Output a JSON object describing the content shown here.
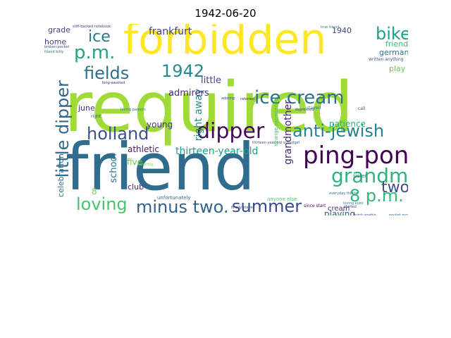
{
  "title": "1942-06-20",
  "cloud": {
    "words": [
      {
        "text": "required",
        "color": "#a0da39"
      },
      {
        "text": "friend",
        "color": "#2f6c8e"
      },
      {
        "text": "forbidden",
        "color": "#fde725"
      },
      {
        "text": "ping-pong",
        "color": "#440154"
      },
      {
        "text": "grandma",
        "color": "#2fb47c"
      },
      {
        "text": "dipper",
        "color": "#46085c"
      },
      {
        "text": "anti-jewish",
        "color": "#26828e"
      },
      {
        "text": "ice cream",
        "color": "#2e6e8e"
      },
      {
        "text": "little dipper",
        "color": "#31668e"
      },
      {
        "text": "holland",
        "color": "#3b528b"
      },
      {
        "text": "minus two.",
        "color": "#33638d"
      },
      {
        "text": "summer",
        "color": "#3e4989"
      },
      {
        "text": "p.m.",
        "color": "#20a486"
      },
      {
        "text": "loving",
        "color": "#4ac16d"
      },
      {
        "text": "8 p.m.",
        "color": "#35b779"
      },
      {
        "text": "1942",
        "color": "#228c8d"
      },
      {
        "text": "fields",
        "color": "#2c728e"
      },
      {
        "text": "bike",
        "color": "#1fa088"
      },
      {
        "text": "two.",
        "color": "#3e4a89"
      },
      {
        "text": "minus",
        "color": "#297a8e"
      },
      {
        "text": "ice",
        "color": "#2a788e"
      },
      {
        "text": "grandmother",
        "color": "#482576"
      },
      {
        "text": "frankfurt",
        "color": "#424086"
      },
      {
        "text": "thirteen-year-old",
        "color": "#1f9e89"
      },
      {
        "text": "right away",
        "color": "#238a8d"
      },
      {
        "text": "admirers",
        "color": "#472c7a"
      },
      {
        "text": "little",
        "color": "#3f4788"
      },
      {
        "text": "school",
        "color": "#2a778e"
      },
      {
        "text": "young",
        "color": "#453781"
      },
      {
        "text": "athletic",
        "color": "#48186a"
      },
      {
        "text": "celebration",
        "color": "#2c738e"
      },
      {
        "text": "patience",
        "color": "#2db27d"
      },
      {
        "text": "playing",
        "color": "#38588c"
      },
      {
        "text": "friends",
        "color": "#3dbc74"
      },
      {
        "text": "germany",
        "color": "#2a788e"
      },
      {
        "text": "grade",
        "color": "#414487"
      },
      {
        "text": "home",
        "color": "#433e85"
      },
      {
        "text": "june",
        "color": "#472d7b"
      },
      {
        "text": "1940",
        "color": "#404688"
      },
      {
        "text": "play",
        "color": "#5ec962"
      },
      {
        "text": "five",
        "color": "#6ccd5a"
      },
      {
        "text": "club",
        "color": "#482475"
      },
      {
        "text": "cream",
        "color": "#453882"
      },
      {
        "text": "8",
        "color": "#7ad151"
      },
      {
        "text": "written anything",
        "color": "#3b528b"
      },
      {
        "text": "stiff-backed notebook",
        "color": "#404588"
      },
      {
        "text": "unfortunately",
        "color": "#31688e"
      },
      {
        "text": "sister",
        "color": "#2c728e"
      },
      {
        "text": "started",
        "color": "#414487"
      },
      {
        "text": "lucky",
        "color": "#84d44b"
      },
      {
        "text": "call",
        "color": "#424086"
      },
      {
        "text": "true friend",
        "color": "#277f8e"
      },
      {
        "text": "long-awaited",
        "color": "#46327e"
      },
      {
        "text": "loving parents",
        "color": "#2a788e"
      },
      {
        "text": "right",
        "color": "#34618d"
      },
      {
        "text": "broken pocket",
        "color": "#3b528b"
      },
      {
        "text": "friend kitty",
        "color": "#2e6f8e"
      },
      {
        "text": "depressed",
        "color": "#443a83"
      },
      {
        "text": "referred",
        "color": "#482878"
      },
      {
        "text": "adoring",
        "color": "#3e4c8a"
      },
      {
        "text": "thirteen-year-old schoolgirl",
        "color": "#39568c"
      },
      {
        "text": "everyday things",
        "color": "#2c728e"
      },
      {
        "text": "anyone else",
        "color": "#5ac864"
      },
      {
        "text": "finally stayed",
        "color": "#3c4f8a"
      },
      {
        "text": "pocket money",
        "color": "#2d708e"
      },
      {
        "text": "dutch apabia",
        "color": "#3f4889"
      },
      {
        "text": "stayed",
        "color": "#2a778e"
      },
      {
        "text": "strange experience",
        "color": "#48c16e"
      },
      {
        "text": "since start",
        "color": "#440154"
      },
      {
        "text": "loving eyes",
        "color": "#26818e"
      },
      {
        "text": "admiring",
        "color": "#7fd34e"
      }
    ]
  }
}
